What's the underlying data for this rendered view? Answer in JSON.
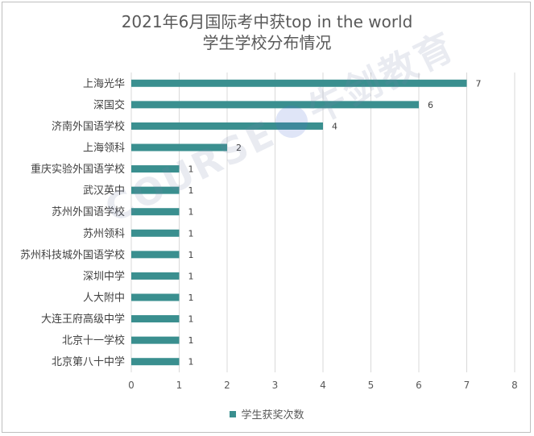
{
  "chart_data": {
    "type": "bar",
    "orientation": "horizontal",
    "title": "2021年6月国际考中获top in the world\n学生学校分布情况",
    "title_lines": [
      "2021年6月国际考中获top in the world",
      "学生学校分布情况"
    ],
    "categories": [
      "上海光华",
      "深国交",
      "济南外国语学校",
      "上海领科",
      "重庆实验外国语学校",
      "武汉英中",
      "苏州外国语学校",
      "苏州领科",
      "苏州科技城外国语学校",
      "深圳中学",
      "人大附中",
      "大连王府高级中学",
      "北京十一学校",
      "北京第八十中学"
    ],
    "series": [
      {
        "name": "学生获奖次数",
        "values": [
          7,
          6,
          4,
          2,
          1,
          1,
          1,
          1,
          1,
          1,
          1,
          1,
          1,
          1
        ]
      }
    ],
    "xlim": [
      0,
      8
    ],
    "x_ticks": [
      0,
      1,
      2,
      3,
      4,
      5,
      6,
      7,
      8
    ],
    "xlabel": "",
    "ylabel": "",
    "grid": "vertical",
    "legend_position": "bottom",
    "data_labels": true,
    "bar_color": "#3a8f8f"
  },
  "watermark": {
    "text_left": "COURSE",
    "text_right": "牛剑教育"
  }
}
